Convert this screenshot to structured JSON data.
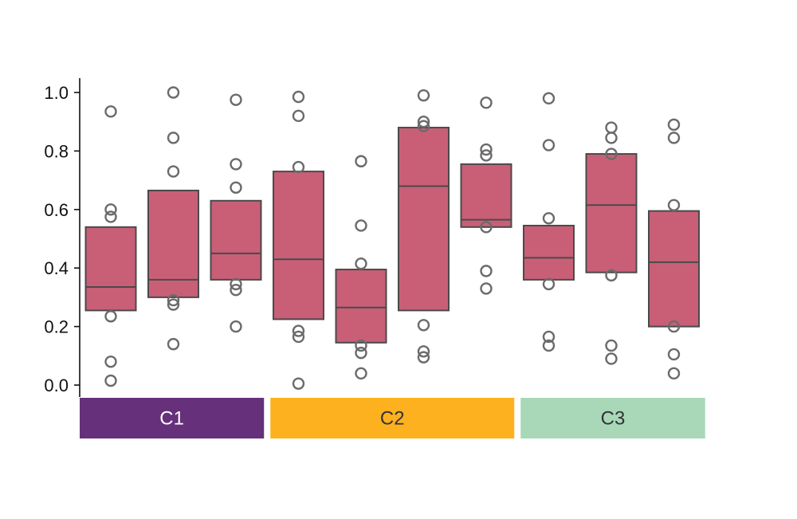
{
  "chart_data": {
    "type": "box",
    "ylim": [
      0.0,
      1.0
    ],
    "yticks": [
      "0.0",
      "0.2",
      "0.4",
      "0.6",
      "0.8",
      "1.0"
    ],
    "grid": false,
    "box_color": "#c95f77",
    "groups": [
      {
        "label": "C1",
        "color": "#66307a",
        "text_color": "#ffffff",
        "boxes": [
          {
            "q1": 0.255,
            "median": 0.335,
            "q3": 0.54,
            "points": [
              0.935,
              0.6,
              0.575,
              0.235,
              0.08,
              0.015
            ]
          },
          {
            "q1": 0.3,
            "median": 0.36,
            "q3": 0.665,
            "points": [
              1.0,
              0.845,
              0.73,
              0.29,
              0.275,
              0.14
            ]
          },
          {
            "q1": 0.36,
            "median": 0.45,
            "q3": 0.63,
            "points": [
              0.975,
              0.755,
              0.675,
              0.345,
              0.325,
              0.2
            ]
          }
        ]
      },
      {
        "label": "C2",
        "color": "#fdb11f",
        "text_color": "#333333",
        "boxes": [
          {
            "q1": 0.225,
            "median": 0.43,
            "q3": 0.73,
            "points": [
              0.985,
              0.92,
              0.745,
              0.185,
              0.165,
              0.005
            ]
          },
          {
            "q1": 0.145,
            "median": 0.265,
            "q3": 0.395,
            "points": [
              0.765,
              0.545,
              0.415,
              0.135,
              0.11,
              0.04
            ]
          },
          {
            "q1": 0.255,
            "median": 0.68,
            "q3": 0.88,
            "points": [
              0.99,
              0.9,
              0.885,
              0.205,
              0.115,
              0.095
            ]
          },
          {
            "q1": 0.54,
            "median": 0.565,
            "q3": 0.755,
            "points": [
              0.965,
              0.805,
              0.785,
              0.54,
              0.39,
              0.33
            ]
          }
        ]
      },
      {
        "label": "C3",
        "color": "#a8d8b8",
        "text_color": "#333333",
        "boxes": [
          {
            "q1": 0.36,
            "median": 0.435,
            "q3": 0.545,
            "points": [
              0.98,
              0.82,
              0.57,
              0.345,
              0.165,
              0.135
            ]
          },
          {
            "q1": 0.385,
            "median": 0.615,
            "q3": 0.79,
            "points": [
              0.88,
              0.845,
              0.79,
              0.375,
              0.135,
              0.09
            ]
          },
          {
            "q1": 0.2,
            "median": 0.42,
            "q3": 0.595,
            "points": [
              0.89,
              0.845,
              0.615,
              0.2,
              0.105,
              0.04
            ]
          }
        ]
      }
    ]
  }
}
